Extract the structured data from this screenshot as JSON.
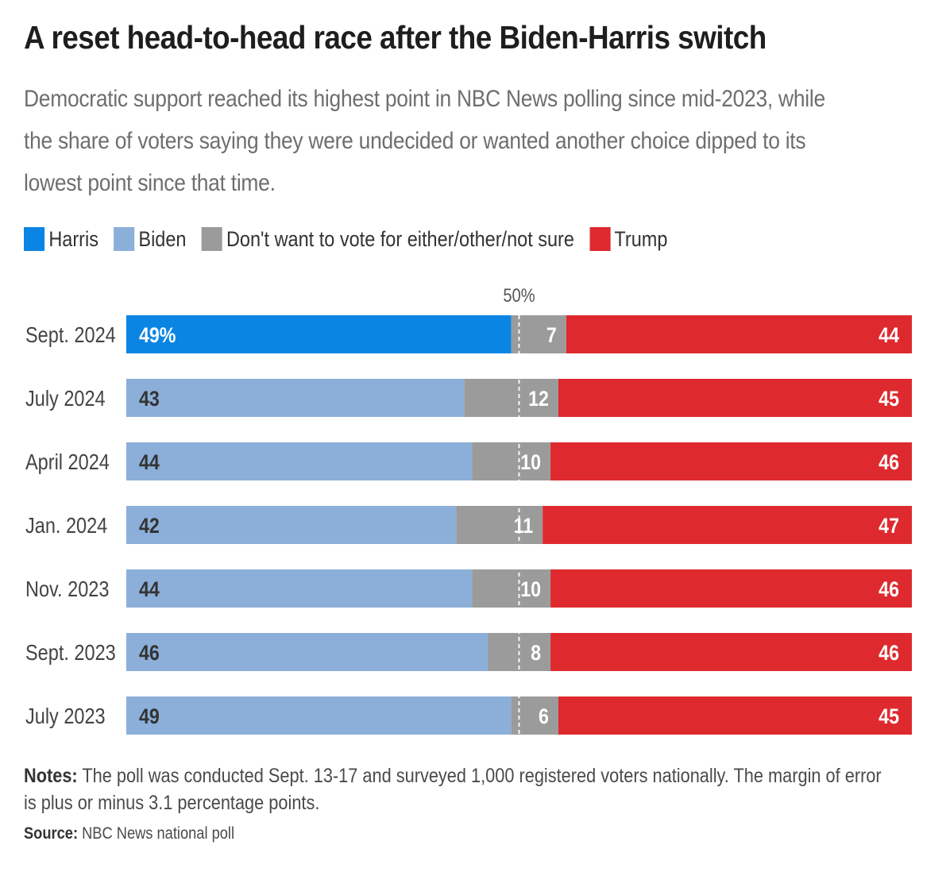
{
  "title": "A reset head-to-head race after the Biden-Harris switch",
  "subtitle": "Democratic support reached its highest point in NBC News polling since mid-2023, while the share of voters saying they were undecided or wanted another choice dipped to its lowest point since that time.",
  "legend": [
    {
      "label": "Harris",
      "color": "#0a85e4"
    },
    {
      "label": "Biden",
      "color": "#8cafd9"
    },
    {
      "label": "Don't want to vote for either/other/not sure",
      "color": "#9b9b9b"
    },
    {
      "label": "Trump",
      "color": "#de2a2e"
    }
  ],
  "notes": {
    "label": "Notes:",
    "text": "The poll was conducted Sept. 13-17 and surveyed 1,000 registered voters nationally. The margin of error is plus or minus 3.1 percentage points."
  },
  "source": {
    "label": "Source:",
    "text": "NBC News national poll"
  },
  "chart_data": {
    "type": "bar",
    "orientation": "horizontal",
    "stacked": true,
    "reference_line": {
      "value": 50,
      "label": "50%"
    },
    "categories": [
      "Sept. 2024",
      "July 2024",
      "April 2024",
      "Jan. 2024",
      "Nov. 2023",
      "Sept. 2023",
      "July 2023"
    ],
    "democrat_candidate": [
      "Harris",
      "Biden",
      "Biden",
      "Biden",
      "Biden",
      "Biden",
      "Biden"
    ],
    "series": [
      {
        "name": "Harris / Biden",
        "values": [
          49,
          43,
          44,
          42,
          44,
          46,
          49
        ],
        "value_labels": [
          "49%",
          "43",
          "44",
          "42",
          "44",
          "46",
          "49"
        ]
      },
      {
        "name": "Don't want to vote for either/other/not sure",
        "values": [
          7,
          12,
          10,
          11,
          10,
          8,
          6
        ],
        "value_labels": [
          "7",
          "12",
          "10",
          "11",
          "10",
          "8",
          "6"
        ]
      },
      {
        "name": "Trump",
        "values": [
          44,
          45,
          46,
          47,
          46,
          46,
          45
        ],
        "value_labels": [
          "44",
          "45",
          "46",
          "47",
          "46",
          "46",
          "45"
        ]
      }
    ],
    "colors": {
      "Harris": "#0a85e4",
      "Biden": "#8cafd9",
      "other": "#9b9b9b",
      "Trump": "#de2a2e"
    },
    "label_colors": {
      "Harris": "#ffffff",
      "Biden": "#333333",
      "other": "#ffffff",
      "Trump": "#ffffff"
    },
    "xlim": [
      0,
      100
    ]
  }
}
